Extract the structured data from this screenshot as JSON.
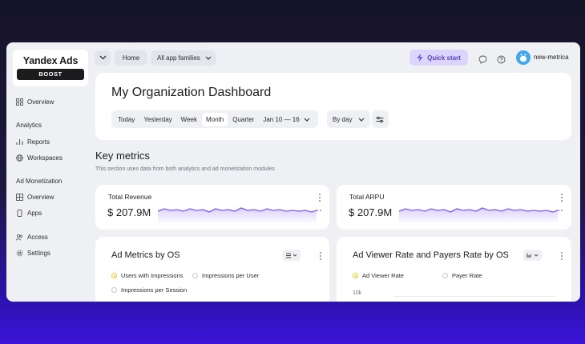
{
  "sidebar": {
    "logo_title": "Yandex Ads",
    "logo_badge": "BOOST",
    "overview": "Overview",
    "analytics_section": "Analytics",
    "reports": "Reports",
    "workspaces": "Workspaces",
    "monetization_section": "Ad Monetization",
    "monetization_overview": "Overview",
    "apps": "Apps",
    "access": "Access",
    "settings": "Settings"
  },
  "topbar": {
    "home": "Home",
    "app_families": "All app families",
    "quick_start": "Quick start",
    "user": "new-metrica"
  },
  "header": {
    "title": "My Organization Dashboard",
    "periods": [
      "Today",
      "Yesterday",
      "Week",
      "Month",
      "Quarter"
    ],
    "active_period": "Month",
    "date_range": "Jan 10 — 16",
    "group_by": "By day"
  },
  "key_metrics": {
    "title": "Key metrics",
    "subtitle": "This section uses data from both analytics and ad monetization modules"
  },
  "metrics": [
    {
      "label": "Total Revenue",
      "value": "$ 207.9M"
    },
    {
      "label": "Total ARPU",
      "value": "$ 207.9M"
    }
  ],
  "charts": {
    "os": {
      "title": "Ad Metrics by OS",
      "options": [
        "Users with Impressions",
        "Impressions per User",
        "Impressions per Session"
      ],
      "selected": "Users with Impressions"
    },
    "rate": {
      "title": "Ad Viewer Rate and Payers Rate by OS",
      "options": [
        "Ad Viewer Rate",
        "Payer Rate"
      ],
      "selected": "Ad Viewer Rate",
      "y_tick": "10k"
    }
  },
  "colors": {
    "accent": "#7b5cf0",
    "quick_start_bg": "#dcd5fb",
    "avatar": "#3fa7f2",
    "selected_radio": "#f4c52c"
  }
}
